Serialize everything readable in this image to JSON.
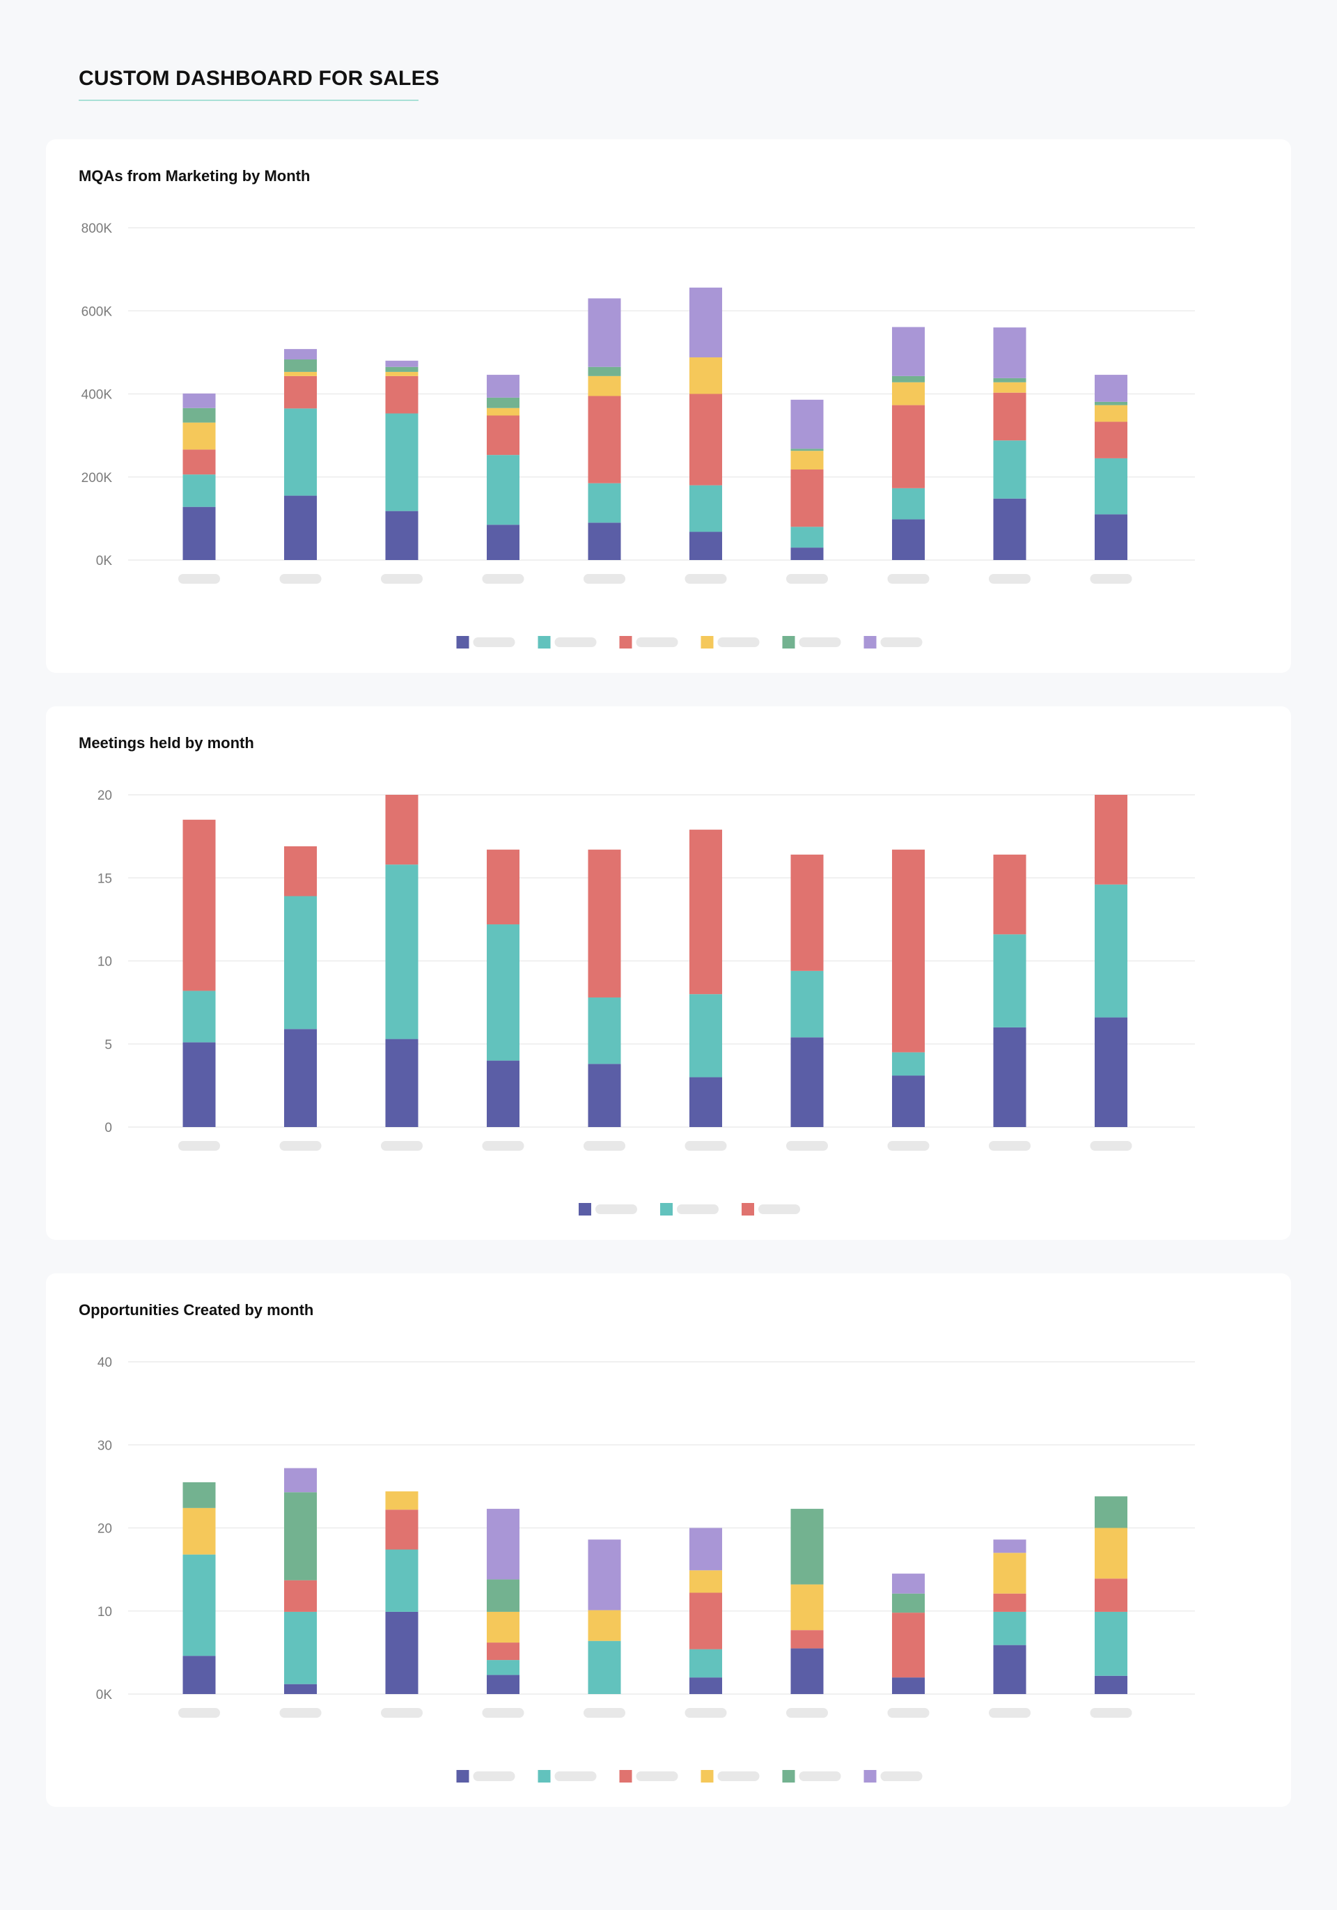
{
  "page": {
    "title": "CUSTOM DASHBOARD FOR SALES"
  },
  "colors": {
    "navy": "#5b5ea6",
    "teal": "#62c2bd",
    "coral": "#e0736f",
    "yellow": "#f5c85a",
    "green": "#73b290",
    "lavender": "#a996d6",
    "placeholder": "#e8e8e8",
    "gridline": "#ececec"
  },
  "chart_data": [
    {
      "type": "bar",
      "stacked": true,
      "title": "MQAs from Marketing by Month",
      "ylim": [
        0,
        800000
      ],
      "yticks": [
        0,
        200000,
        400000,
        600000,
        800000
      ],
      "ytick_labels": [
        "0K",
        "200K",
        "400K",
        "600K",
        "800K"
      ],
      "grid": true,
      "legend": "bottom-center",
      "categories": [
        "",
        "",
        "",
        "",
        "",
        "",
        "",
        "",
        "",
        ""
      ],
      "series": [
        {
          "color": "#5b5ea6",
          "values": [
            128000,
            155000,
            118000,
            85000,
            90000,
            68000,
            30000,
            98000,
            148000,
            110000
          ]
        },
        {
          "color": "#62c2bd",
          "values": [
            78000,
            210000,
            235000,
            168000,
            95000,
            112000,
            50000,
            75000,
            140000,
            135000
          ]
        },
        {
          "color": "#e0736f",
          "values": [
            60000,
            78000,
            90000,
            95000,
            210000,
            220000,
            138000,
            200000,
            115000,
            88000
          ]
        },
        {
          "color": "#f5c85a",
          "values": [
            65000,
            10000,
            10000,
            18000,
            48000,
            88000,
            45000,
            55000,
            25000,
            40000
          ]
        },
        {
          "color": "#73b290",
          "values": [
            35000,
            30000,
            12000,
            25000,
            22000,
            0,
            5000,
            15000,
            10000,
            8000
          ]
        },
        {
          "color": "#a996d6",
          "values": [
            35000,
            25000,
            15000,
            55000,
            165000,
            168000,
            118000,
            118000,
            122000,
            65000
          ]
        }
      ]
    },
    {
      "type": "bar",
      "stacked": true,
      "title": "Meetings held by month",
      "ylim": [
        0,
        20
      ],
      "yticks": [
        0,
        5,
        10,
        15,
        20
      ],
      "ytick_labels": [
        "0",
        "5",
        "10",
        "15",
        "20"
      ],
      "grid": true,
      "legend": "bottom-center",
      "categories": [
        "",
        "",
        "",
        "",
        "",
        "",
        "",
        "",
        "",
        ""
      ],
      "series": [
        {
          "color": "#5b5ea6",
          "values": [
            5.1,
            5.9,
            5.3,
            4.0,
            3.8,
            3.0,
            5.4,
            3.1,
            6.0,
            6.6
          ]
        },
        {
          "color": "#62c2bd",
          "values": [
            3.1,
            8.0,
            10.5,
            8.2,
            4.0,
            5.0,
            4.0,
            1.4,
            5.6,
            8.0
          ]
        },
        {
          "color": "#e0736f",
          "values": [
            10.3,
            3.0,
            4.2,
            4.5,
            8.9,
            9.9,
            7.0,
            12.2,
            4.8,
            5.4
          ]
        }
      ]
    },
    {
      "type": "bar",
      "stacked": true,
      "title": "Opportunities Created by month",
      "ylim": [
        0,
        40
      ],
      "yticks": [
        0,
        10,
        20,
        30,
        40
      ],
      "ytick_labels": [
        "0K",
        "10",
        "20",
        "30",
        "40"
      ],
      "grid": true,
      "legend": "bottom-center",
      "categories": [
        "",
        "",
        "",
        "",
        "",
        "",
        "",
        "",
        "",
        ""
      ],
      "series": [
        {
          "color": "#5b5ea6",
          "values": [
            4.6,
            1.2,
            9.9,
            2.3,
            0,
            2.0,
            5.5,
            2.0,
            5.9,
            2.2
          ]
        },
        {
          "color": "#62c2bd",
          "values": [
            12.2,
            8.7,
            7.5,
            1.8,
            6.4,
            3.4,
            0,
            0,
            4.0,
            7.7
          ]
        },
        {
          "color": "#e0736f",
          "values": [
            0,
            3.8,
            4.8,
            2.1,
            0,
            6.8,
            2.2,
            7.8,
            2.2,
            4.0
          ]
        },
        {
          "color": "#f5c85a",
          "values": [
            5.6,
            0,
            2.2,
            3.7,
            3.7,
            2.7,
            5.5,
            0,
            4.9,
            6.1
          ]
        },
        {
          "color": "#73b290",
          "values": [
            3.1,
            10.6,
            0,
            3.9,
            0,
            0,
            9.1,
            2.3,
            0,
            3.8
          ]
        },
        {
          "color": "#a996d6",
          "values": [
            0,
            2.9,
            0,
            8.5,
            8.5,
            5.1,
            0,
            2.4,
            1.6,
            0
          ]
        }
      ]
    }
  ]
}
